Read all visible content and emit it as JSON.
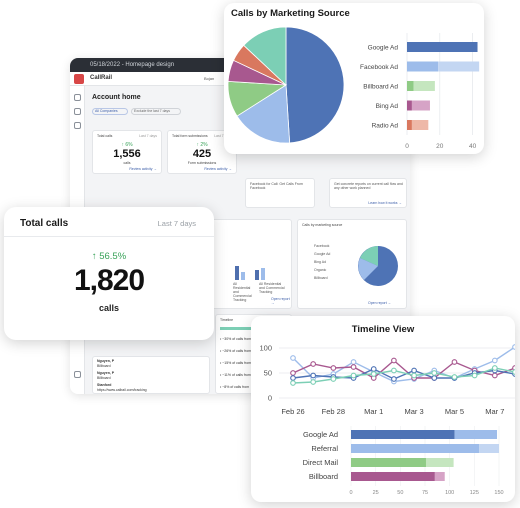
{
  "dashboard": {
    "window_title": "05/18/2022 - Homepage design",
    "brand": "CallRail",
    "user": "Bojan",
    "page_title": "Account home",
    "filter_chip": "All Companies",
    "filter_chip2": "Exclude the last 7 days",
    "mini_cards": [
      {
        "label": "Total calls",
        "period": "Last 7 days",
        "pct": "↑ 6%",
        "value": "1,556",
        "unit": "calls",
        "link": "Review activity →"
      },
      {
        "label": "Total form submissions",
        "period": "Last 7 days",
        "pct": "↑ 2%",
        "value": "425",
        "unit": "Form submissions",
        "link": "Review activity →"
      }
    ],
    "panels": {
      "calls_by_number": "Calls by number",
      "calls_by_source": "Calls by marketing source",
      "open_report": "Open report →",
      "timeline": "Timeline",
      "learn_more": "Learn how it works →",
      "text_blurb": "Facebook for Call: Get Calls From Facebook",
      "text_blurb2": "Get concrete reports on current call flow and any other work planned",
      "legend_items": [
        "Facebook",
        "Google Ad",
        "Bing Ad",
        "Organic",
        "Billboard"
      ],
      "num_labels": [
        "All Residential and Commercial Tracking",
        "All Residential and Commercial Tracking"
      ],
      "entries": [
        {
          "name": "Nguyen, P",
          "detail": "Billboard"
        },
        {
          "name": "Nguyen, P",
          "detail": "Billboard"
        },
        {
          "name": "Stanford",
          "detail": "https://www.callrail.com/tracking"
        }
      ],
      "timeline_rows": [
        "Google Ad",
        "Referral",
        "Direct Mail",
        "Billboard"
      ],
      "timeline_values": [
        "• ~30% of calls from",
        "• ~26% of calls from",
        "• ~15% of calls from",
        "• ~11% of calls from",
        "• ~8% of calls from"
      ]
    }
  },
  "total_calls": {
    "title": "Total calls",
    "period": "Last 7 days",
    "pct": "↑ 56.5%",
    "value": "1,820",
    "unit": "calls"
  },
  "colors": {
    "google": "#4e73b5",
    "facebook": "#9dbcea",
    "billboard": "#8fcb85",
    "bing": "#a8588f",
    "radio": "#d9785f",
    "teal": "#7ccfb5",
    "green_up": "#3aa35a"
  },
  "chart_data": [
    {
      "type": "pie+bar",
      "title": "Calls by Marketing Source",
      "pie": [
        {
          "label": "Google Ad",
          "value": 49,
          "color": "#4e73b5"
        },
        {
          "label": "Facebook Ad",
          "value": 17,
          "color": "#9dbcea"
        },
        {
          "label": "Billboard Ad",
          "value": 10,
          "color": "#8fcb85"
        },
        {
          "label": "Bing Ad",
          "value": 6,
          "color": "#a8588f"
        },
        {
          "label": "Radio Ad",
          "value": 5,
          "color": "#d9785f"
        },
        {
          "label": "",
          "value": 13,
          "color": "#7ccfb5"
        }
      ],
      "categories": [
        "Google Ad",
        "Facebook Ad",
        "Billboard Ad",
        "Bing Ad",
        "Radio Ad"
      ],
      "series": [
        {
          "values": [
            43,
            19,
            4,
            3,
            3
          ]
        },
        {
          "values": [
            0,
            25,
            13,
            11,
            10
          ]
        }
      ],
      "bar_colors": [
        [
          "#4e73b5",
          "#9dbcea"
        ],
        [
          "#9dbcea",
          "#c3d6f2"
        ],
        [
          "#8fcb85",
          "#c5e6bf"
        ],
        [
          "#a8588f",
          "#d6a3c6"
        ],
        [
          "#d9785f",
          "#eeb8a8"
        ]
      ],
      "xticks": [
        0,
        20,
        40
      ],
      "xlim": [
        0,
        50
      ]
    },
    {
      "type": "line",
      "title": "Timeline View",
      "x": [
        "Feb 26",
        "",
        "Feb 28",
        "",
        "Mar 1",
        "",
        "Mar 3",
        "",
        "Mar 5",
        "",
        "Mar 7",
        ""
      ],
      "xticks": [
        "Feb 26",
        "Feb 28",
        "Mar 1",
        "Mar 3",
        "Mar 5",
        "Mar 7"
      ],
      "yticks": [
        0,
        50,
        100
      ],
      "ylim": [
        0,
        100
      ],
      "series": [
        {
          "color": "#9dbcea",
          "values": [
            80,
            40,
            48,
            72,
            52,
            33,
            38,
            55,
            40,
            58,
            75,
            102
          ]
        },
        {
          "color": "#a8588f",
          "values": [
            50,
            68,
            60,
            62,
            40,
            75,
            40,
            40,
            72,
            55,
            45,
            60
          ]
        },
        {
          "color": "#4e73b5",
          "values": [
            40,
            45,
            42,
            40,
            58,
            38,
            55,
            40,
            40,
            50,
            55,
            48
          ]
        },
        {
          "color": "#7ccfb5",
          "values": [
            30,
            32,
            38,
            45,
            48,
            55,
            45,
            50,
            42,
            45,
            60,
            52
          ]
        }
      ]
    },
    {
      "type": "bar",
      "orientation": "horizontal",
      "categories": [
        "Google Ad",
        "Referral",
        "Direct Mail",
        "Billboard"
      ],
      "series": [
        {
          "values": [
            105,
            130,
            76,
            85
          ]
        },
        {
          "values": [
            43,
            20,
            28,
            10
          ]
        }
      ],
      "bar_colors": [
        [
          "#4e73b5",
          "#9dbcea"
        ],
        [
          "#9dbcea",
          "#c3d6f2"
        ],
        [
          "#8fcb85",
          "#c5e6bf"
        ],
        [
          "#a8588f",
          "#d6a3c6"
        ]
      ],
      "xticks": [
        0,
        25,
        50,
        75,
        100,
        125,
        150
      ],
      "xlim": [
        0,
        150
      ]
    }
  ]
}
